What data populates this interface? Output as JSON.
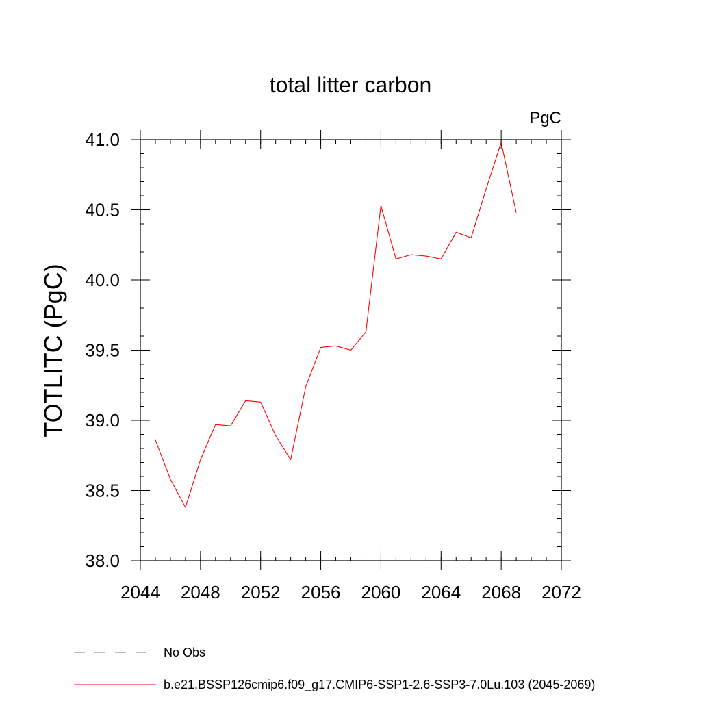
{
  "chart_data": {
    "type": "line",
    "title": "total litter carbon",
    "units": "PgC",
    "ylabel": "TOTLITC  (PgC)",
    "xlabel": "",
    "xlim": [
      2044,
      2072
    ],
    "ylim": [
      38.0,
      41.0
    ],
    "x_ticks": [
      "2044",
      "2048",
      "2052",
      "2056",
      "2060",
      "2064",
      "2068",
      "2072"
    ],
    "y_ticks": [
      "38.0",
      "38.5",
      "39.0",
      "39.5",
      "40.0",
      "40.5",
      "41.0"
    ],
    "grid": false,
    "legend_position": "bottom",
    "series": [
      {
        "name": "b.e21.BSSP126cmip6.f09_g17.CMIP6-SSP1-2.6-SSP3-7.0Lu.103 (2045-2069)",
        "color": "#ff0000",
        "x": [
          2045,
          2046,
          2047,
          2048,
          2049,
          2050,
          2051,
          2052,
          2053,
          2054,
          2055,
          2056,
          2057,
          2058,
          2059,
          2060,
          2061,
          2062,
          2063,
          2064,
          2065,
          2066,
          2067,
          2068,
          2069
        ],
        "values": [
          38.86,
          38.58,
          38.38,
          38.72,
          38.97,
          38.96,
          39.14,
          39.13,
          38.89,
          38.72,
          39.24,
          39.52,
          39.53,
          39.5,
          39.63,
          40.53,
          40.15,
          40.18,
          40.17,
          40.15,
          40.34,
          40.3,
          40.65,
          40.98,
          40.48
        ]
      }
    ],
    "legend": [
      {
        "label": "No Obs",
        "color": "#7b68ae",
        "style": "dashed"
      },
      {
        "label": "b.e21.BSSP126cmip6.f09_g17.CMIP6-SSP1-2.6-SSP3-7.0Lu.103 (2045-2069)",
        "color": "#ff0000",
        "style": "solid"
      }
    ]
  }
}
